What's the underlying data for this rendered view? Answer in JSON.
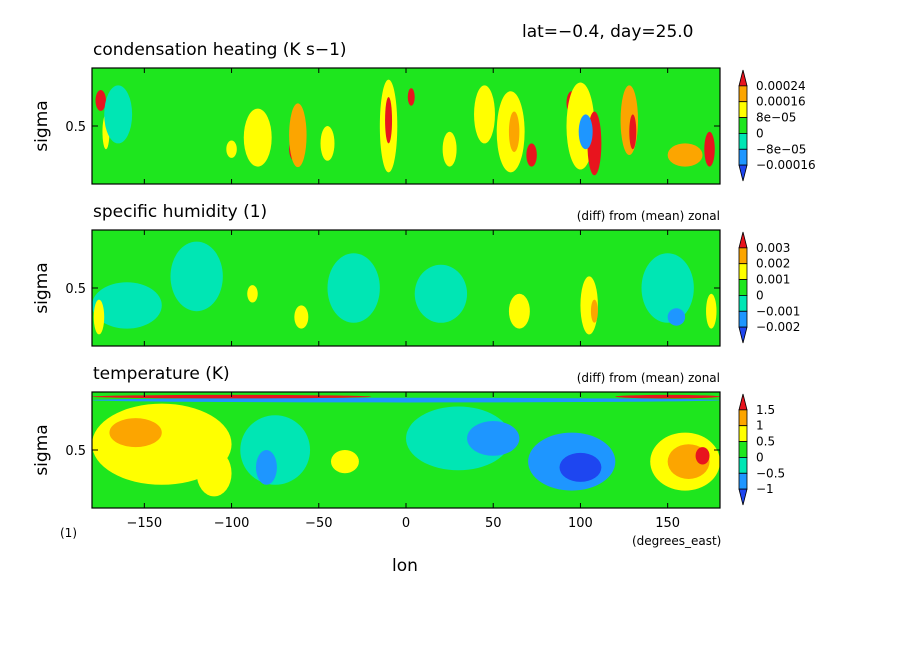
{
  "header": {
    "text": "lat=−0.4, day=25.0"
  },
  "x_axis": {
    "label": "lon",
    "units": "(degrees_east)",
    "range": [
      -180,
      180
    ],
    "ticks": [
      -150,
      -100,
      -50,
      0,
      50,
      100,
      150
    ],
    "tick_labels": [
      "−150",
      "−100",
      "−50",
      "0",
      "50",
      "100",
      "150"
    ]
  },
  "corner_note": "(1)",
  "colors": {
    "red": "#e8141e",
    "orange": "#fca500",
    "yellow": "#ffff00",
    "green": "#1ee61e",
    "cyan": "#00e6b4",
    "blue": "#1e96ff",
    "darkblue": "#1e46f0"
  },
  "chart_data": [
    {
      "type": "heatmap",
      "title": "condensation heating (K s−1)",
      "subtitle": "",
      "ylabel": "sigma",
      "y_tick_label": "0.5",
      "xlim": [
        -180,
        180
      ],
      "colorbar": {
        "levels": [
          "0.00024",
          "0.00016",
          "8e−05",
          "0",
          "−8e−05",
          "−0.00016"
        ],
        "colors": [
          "#e8141e",
          "#fca500",
          "#ffff00",
          "#1ee61e",
          "#00e6b4",
          "#1e96ff",
          "#1e46f0"
        ]
      },
      "base": "#1ee61e",
      "features": [
        {
          "lon": -175,
          "sig": 0.72,
          "w": 3,
          "h": 0.18,
          "c": "#e8141e"
        },
        {
          "lon": -172,
          "sig": 0.45,
          "w": 2,
          "h": 0.3,
          "c": "#ffff00"
        },
        {
          "lon": -165,
          "sig": 0.6,
          "w": 8,
          "h": 0.5,
          "c": "#00e6b4"
        },
        {
          "lon": -100,
          "sig": 0.3,
          "w": 3,
          "h": 0.15,
          "c": "#ffff00"
        },
        {
          "lon": -88,
          "sig": 0.45,
          "w": 3,
          "h": 0.2,
          "c": "#e8141e"
        },
        {
          "lon": -85,
          "sig": 0.4,
          "w": 8,
          "h": 0.5,
          "c": "#ffff00"
        },
        {
          "lon": -64,
          "sig": 0.3,
          "w": 3,
          "h": 0.2,
          "c": "#e8141e"
        },
        {
          "lon": -62,
          "sig": 0.42,
          "w": 5,
          "h": 0.55,
          "c": "#fca500"
        },
        {
          "lon": -45,
          "sig": 0.35,
          "w": 4,
          "h": 0.3,
          "c": "#ffff00"
        },
        {
          "lon": -10,
          "sig": 0.5,
          "w": 5,
          "h": 0.8,
          "c": "#ffff00"
        },
        {
          "lon": -10,
          "sig": 0.55,
          "w": 2,
          "h": 0.4,
          "c": "#e8141e"
        },
        {
          "lon": 3,
          "sig": 0.75,
          "w": 2,
          "h": 0.15,
          "c": "#e8141e"
        },
        {
          "lon": 25,
          "sig": 0.3,
          "w": 4,
          "h": 0.3,
          "c": "#ffff00"
        },
        {
          "lon": 45,
          "sig": 0.6,
          "w": 6,
          "h": 0.5,
          "c": "#ffff00"
        },
        {
          "lon": 60,
          "sig": 0.45,
          "w": 8,
          "h": 0.7,
          "c": "#ffff00"
        },
        {
          "lon": 62,
          "sig": 0.45,
          "w": 3,
          "h": 0.35,
          "c": "#fca500"
        },
        {
          "lon": 72,
          "sig": 0.25,
          "w": 3,
          "h": 0.2,
          "c": "#e8141e"
        },
        {
          "lon": 95,
          "sig": 0.7,
          "w": 3,
          "h": 0.2,
          "c": "#e8141e"
        },
        {
          "lon": 100,
          "sig": 0.5,
          "w": 8,
          "h": 0.75,
          "c": "#ffff00"
        },
        {
          "lon": 108,
          "sig": 0.35,
          "w": 4,
          "h": 0.55,
          "c": "#e8141e"
        },
        {
          "lon": 103,
          "sig": 0.45,
          "w": 4,
          "h": 0.3,
          "c": "#1e96ff"
        },
        {
          "lon": 128,
          "sig": 0.55,
          "w": 5,
          "h": 0.6,
          "c": "#fca500"
        },
        {
          "lon": 130,
          "sig": 0.45,
          "w": 2,
          "h": 0.3,
          "c": "#e8141e"
        },
        {
          "lon": 160,
          "sig": 0.25,
          "w": 10,
          "h": 0.2,
          "c": "#fca500"
        },
        {
          "lon": 174,
          "sig": 0.3,
          "w": 3,
          "h": 0.3,
          "c": "#e8141e"
        }
      ]
    },
    {
      "type": "heatmap",
      "title": "specific humidity (1)",
      "subtitle": "(diff) from (mean) zonal",
      "ylabel": "sigma",
      "y_tick_label": "0.5",
      "xlim": [
        -180,
        180
      ],
      "colorbar": {
        "levels": [
          "0.003",
          "0.002",
          "0.001",
          "0",
          "−0.001",
          "−0.002"
        ],
        "colors": [
          "#e8141e",
          "#fca500",
          "#ffff00",
          "#1ee61e",
          "#00e6b4",
          "#1e96ff",
          "#1e46f0"
        ]
      },
      "base": "#1ee61e",
      "features": [
        {
          "lon": -160,
          "sig": 0.35,
          "w": 20,
          "h": 0.4,
          "c": "#00e6b4"
        },
        {
          "lon": -176,
          "sig": 0.25,
          "w": 3,
          "h": 0.3,
          "c": "#ffff00"
        },
        {
          "lon": -120,
          "sig": 0.6,
          "w": 15,
          "h": 0.6,
          "c": "#00e6b4"
        },
        {
          "lon": -88,
          "sig": 0.45,
          "w": 3,
          "h": 0.15,
          "c": "#ffff00"
        },
        {
          "lon": -60,
          "sig": 0.25,
          "w": 4,
          "h": 0.2,
          "c": "#ffff00"
        },
        {
          "lon": -30,
          "sig": 0.5,
          "w": 15,
          "h": 0.6,
          "c": "#00e6b4"
        },
        {
          "lon": 20,
          "sig": 0.45,
          "w": 15,
          "h": 0.5,
          "c": "#00e6b4"
        },
        {
          "lon": 65,
          "sig": 0.3,
          "w": 6,
          "h": 0.3,
          "c": "#ffff00"
        },
        {
          "lon": 105,
          "sig": 0.35,
          "w": 5,
          "h": 0.5,
          "c": "#ffff00"
        },
        {
          "lon": 108,
          "sig": 0.3,
          "w": 2,
          "h": 0.2,
          "c": "#fca500"
        },
        {
          "lon": 150,
          "sig": 0.5,
          "w": 15,
          "h": 0.6,
          "c": "#00e6b4"
        },
        {
          "lon": 175,
          "sig": 0.3,
          "w": 3,
          "h": 0.3,
          "c": "#ffff00"
        },
        {
          "lon": 155,
          "sig": 0.25,
          "w": 5,
          "h": 0.15,
          "c": "#1e96ff"
        }
      ]
    },
    {
      "type": "heatmap",
      "title": "temperature (K)",
      "subtitle": "(diff) from (mean) zonal",
      "ylabel": "sigma",
      "y_tick_label": "0.5",
      "xlim": [
        -180,
        180
      ],
      "colorbar": {
        "levels": [
          "1.5",
          "1",
          "0.5",
          "0",
          "−0.5",
          "−1"
        ],
        "colors": [
          "#e8141e",
          "#fca500",
          "#ffff00",
          "#1ee61e",
          "#00e6b4",
          "#1e96ff",
          "#1e46f0"
        ]
      },
      "base": "#1ee61e",
      "features": [
        {
          "lon": -140,
          "sig": 0.55,
          "w": 40,
          "h": 0.7,
          "c": "#ffff00"
        },
        {
          "lon": -155,
          "sig": 0.65,
          "w": 15,
          "h": 0.25,
          "c": "#fca500"
        },
        {
          "lon": -110,
          "sig": 0.3,
          "w": 10,
          "h": 0.4,
          "c": "#ffff00"
        },
        {
          "lon": -75,
          "sig": 0.5,
          "w": 20,
          "h": 0.6,
          "c": "#00e6b4"
        },
        {
          "lon": -80,
          "sig": 0.35,
          "w": 6,
          "h": 0.3,
          "c": "#1e96ff"
        },
        {
          "lon": -35,
          "sig": 0.4,
          "w": 8,
          "h": 0.2,
          "c": "#ffff00"
        },
        {
          "lon": 30,
          "sig": 0.6,
          "w": 30,
          "h": 0.55,
          "c": "#00e6b4"
        },
        {
          "lon": 50,
          "sig": 0.6,
          "w": 15,
          "h": 0.3,
          "c": "#1e96ff"
        },
        {
          "lon": 95,
          "sig": 0.4,
          "w": 25,
          "h": 0.5,
          "c": "#1e96ff"
        },
        {
          "lon": 100,
          "sig": 0.35,
          "w": 12,
          "h": 0.25,
          "c": "#1e46f0"
        },
        {
          "lon": 160,
          "sig": 0.4,
          "w": 20,
          "h": 0.5,
          "c": "#ffff00"
        },
        {
          "lon": 162,
          "sig": 0.4,
          "w": 12,
          "h": 0.3,
          "c": "#fca500"
        },
        {
          "lon": 170,
          "sig": 0.45,
          "w": 4,
          "h": 0.15,
          "c": "#e8141e"
        },
        {
          "lon": 0,
          "sig": 0.93,
          "w": 180,
          "h": 0.04,
          "c": "#1e96ff"
        },
        {
          "lon": -100,
          "sig": 0.96,
          "w": 80,
          "h": 0.03,
          "c": "#e8141e"
        },
        {
          "lon": 150,
          "sig": 0.96,
          "w": 30,
          "h": 0.03,
          "c": "#e8141e"
        }
      ]
    }
  ]
}
